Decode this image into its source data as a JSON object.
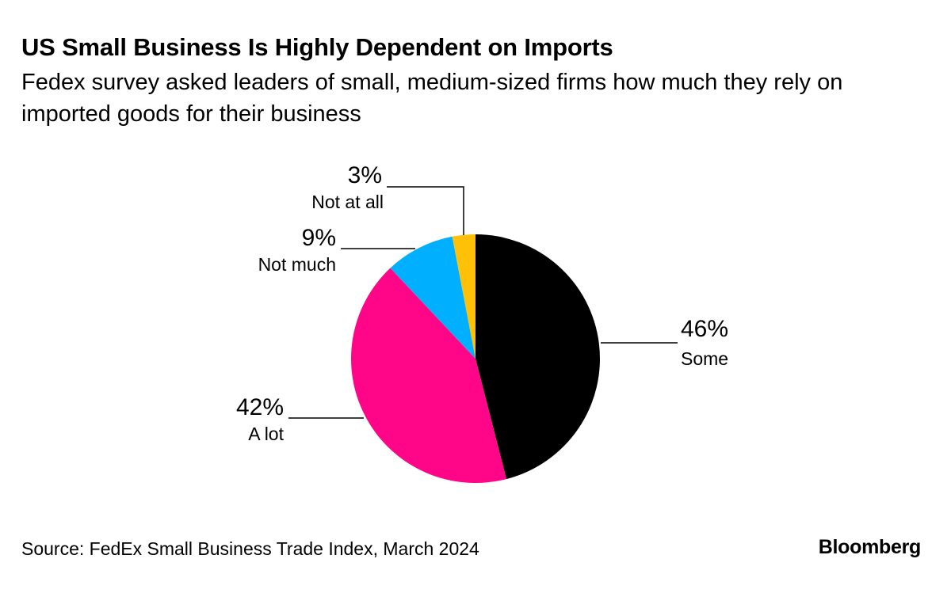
{
  "header": {
    "title": "US Small Business Is Highly Dependent on Imports",
    "subtitle": "Fedex survey asked leaders of small, medium-sized firms how much they rely on imported goods for their business"
  },
  "footer": {
    "source": "Source: FedEx Small Business Trade Index, March 2024",
    "brand": "Bloomberg"
  },
  "chart_data": {
    "type": "pie",
    "title": "US Small Business Is Highly Dependent on Imports",
    "subtitle": "Fedex survey asked leaders of small, medium-sized firms how much they rely on imported goods for their business",
    "slices": [
      {
        "label": "Some",
        "value": 46,
        "value_label": "46%",
        "color": "#000000"
      },
      {
        "label": "A lot",
        "value": 42,
        "value_label": "42%",
        "color": "#FF0588"
      },
      {
        "label": "Not much",
        "value": 9,
        "value_label": "9%",
        "color": "#00B0FF"
      },
      {
        "label": "Not at all",
        "value": 3,
        "value_label": "3%",
        "color": "#FFC107"
      }
    ],
    "start": "12 o'clock",
    "direction": "clockwise"
  }
}
